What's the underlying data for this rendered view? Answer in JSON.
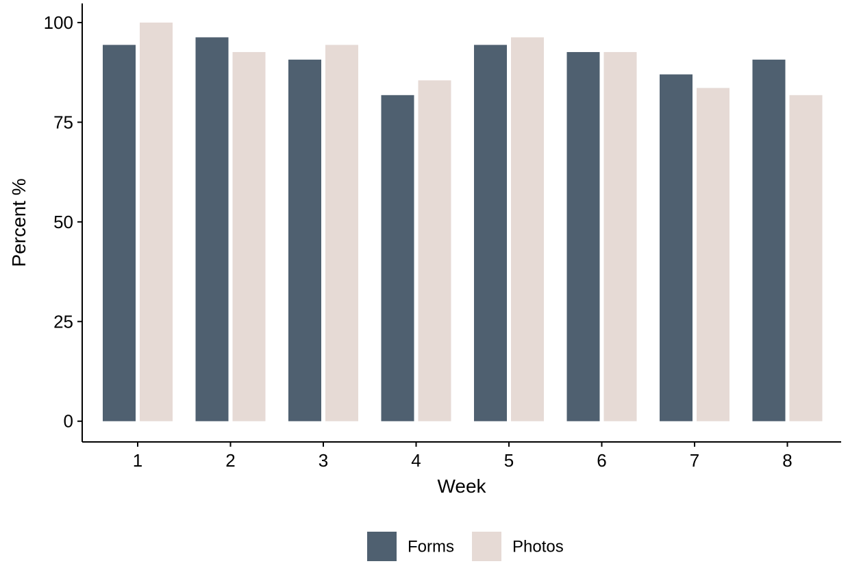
{
  "chart_data": {
    "type": "bar",
    "title": "",
    "xlabel": "Week",
    "ylabel": "Percent %",
    "categories": [
      "1",
      "2",
      "3",
      "4",
      "5",
      "6",
      "7",
      "8"
    ],
    "series": [
      {
        "name": "Forms",
        "color": "#4f6070",
        "values": [
          94.4,
          96.3,
          90.7,
          81.8,
          94.4,
          92.6,
          87.0,
          90.7
        ]
      },
      {
        "name": "Photos",
        "color": "#e6dad5",
        "values": [
          100.0,
          92.6,
          94.4,
          85.5,
          96.3,
          92.6,
          83.6,
          81.8
        ]
      }
    ],
    "yticks": [
      0,
      25,
      50,
      75,
      100
    ],
    "ylim": [
      -5.2,
      104.8
    ],
    "grid": false,
    "legend_position": "bottom"
  }
}
